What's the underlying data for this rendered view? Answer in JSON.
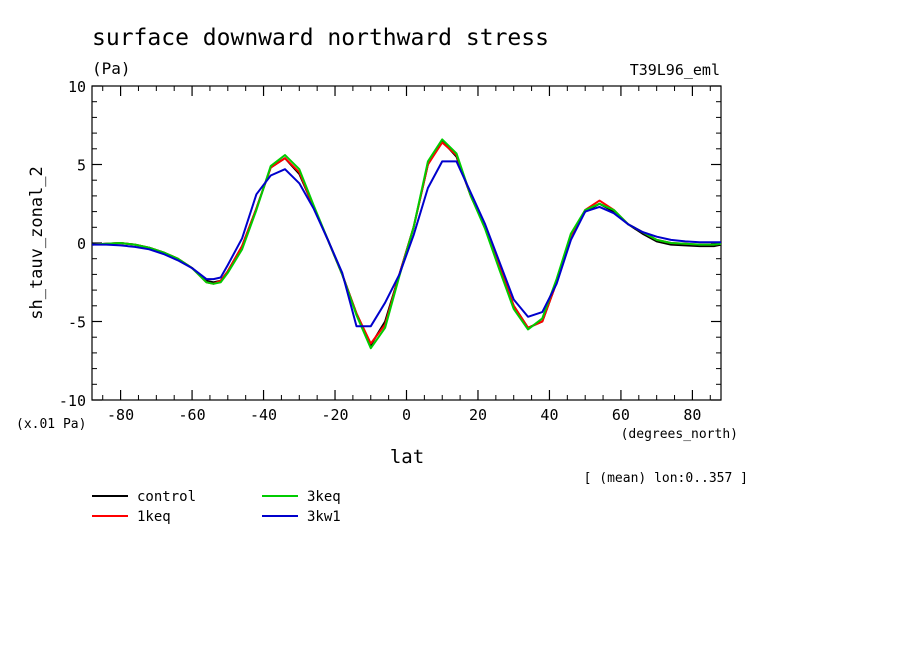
{
  "chart_data": {
    "type": "line",
    "title": "surface downward northward stress",
    "subtitle": "(Pa)",
    "run_label": "T39L96_eml",
    "ylabel": "sh_tauv_zonal_2",
    "yunit": "(x.01 Pa)",
    "xlabel": "lat",
    "xunit": "(degrees_north)",
    "note": "[ (mean) lon:0..357 ]",
    "xlim": [
      -88,
      88
    ],
    "ylim": [
      -10,
      10
    ],
    "x_ticks": [
      -80,
      -60,
      -40,
      -20,
      0,
      20,
      40,
      60,
      80
    ],
    "x_tick_labels": [
      "-80",
      "-60",
      "-40",
      "-20",
      "0",
      "20",
      "40",
      "60",
      "80"
    ],
    "y_ticks": [
      -10,
      -5,
      0,
      5,
      10
    ],
    "y_tick_labels": [
      "-10",
      "-5",
      "0",
      "5",
      "10"
    ],
    "grid": false,
    "legend_position": "bottom-left",
    "x": [
      -88,
      -84,
      -80,
      -76,
      -72,
      -68,
      -64,
      -60,
      -56,
      -54,
      -52,
      -50,
      -46,
      -42,
      -38,
      -34,
      -30,
      -26,
      -22,
      -18,
      -14,
      -10,
      -6,
      -2,
      2,
      6,
      10,
      14,
      18,
      22,
      26,
      30,
      34,
      38,
      42,
      46,
      50,
      54,
      58,
      62,
      66,
      70,
      74,
      78,
      82,
      86,
      88
    ],
    "series": [
      {
        "name": "control",
        "color": "#000000",
        "values": [
          -0.1,
          -0.05,
          0.0,
          -0.1,
          -0.3,
          -0.6,
          -1.0,
          -1.6,
          -2.4,
          -2.5,
          -2.4,
          -1.8,
          -0.2,
          2.2,
          4.8,
          5.4,
          4.4,
          2.3,
          0.2,
          -2.0,
          -4.5,
          -6.5,
          -5.0,
          -2.0,
          1.0,
          5.0,
          6.5,
          5.5,
          3.0,
          1.0,
          -1.5,
          -4.0,
          -5.4,
          -5.0,
          -2.5,
          0.5,
          2.0,
          2.5,
          2.0,
          1.2,
          0.6,
          0.1,
          -0.1,
          -0.15,
          -0.2,
          -0.2,
          -0.1
        ]
      },
      {
        "name": "1keq",
        "color": "#ff0000",
        "values": [
          -0.1,
          -0.05,
          0.0,
          -0.1,
          -0.3,
          -0.6,
          -1.0,
          -1.6,
          -2.5,
          -2.6,
          -2.4,
          -1.8,
          -0.2,
          2.2,
          4.8,
          5.4,
          4.5,
          2.3,
          0.2,
          -2.0,
          -4.5,
          -6.4,
          -5.2,
          -2.0,
          1.0,
          5.0,
          6.4,
          5.6,
          3.0,
          1.0,
          -1.5,
          -4.0,
          -5.4,
          -5.0,
          -2.5,
          0.5,
          2.1,
          2.7,
          2.1,
          1.2,
          0.7,
          0.2,
          0.0,
          -0.05,
          -0.1,
          -0.1,
          -0.05
        ]
      },
      {
        "name": "3keq",
        "color": "#00cc00",
        "values": [
          -0.1,
          -0.05,
          0.0,
          -0.1,
          -0.3,
          -0.6,
          -1.0,
          -1.6,
          -2.5,
          -2.6,
          -2.5,
          -1.9,
          -0.4,
          2.1,
          4.9,
          5.6,
          4.7,
          2.4,
          0.2,
          -2.0,
          -4.6,
          -6.7,
          -5.4,
          -2.1,
          1.0,
          5.2,
          6.6,
          5.7,
          3.0,
          0.9,
          -1.7,
          -4.2,
          -5.5,
          -4.8,
          -2.3,
          0.6,
          2.1,
          2.5,
          2.1,
          1.2,
          0.7,
          0.2,
          0.0,
          -0.05,
          -0.1,
          -0.1,
          -0.05
        ]
      },
      {
        "name": "3kw1",
        "color": "#0000cc",
        "values": [
          -0.1,
          -0.1,
          -0.15,
          -0.25,
          -0.4,
          -0.7,
          -1.1,
          -1.6,
          -2.3,
          -2.3,
          -2.2,
          -1.4,
          0.3,
          3.1,
          4.3,
          4.7,
          3.8,
          2.2,
          0.2,
          -1.9,
          -5.3,
          -5.3,
          -3.8,
          -2.0,
          0.5,
          3.5,
          5.2,
          5.2,
          3.2,
          1.2,
          -1.2,
          -3.6,
          -4.7,
          -4.4,
          -2.6,
          0.2,
          2.0,
          2.3,
          1.9,
          1.2,
          0.7,
          0.4,
          0.2,
          0.1,
          0.05,
          0.05,
          0.05
        ]
      }
    ]
  }
}
